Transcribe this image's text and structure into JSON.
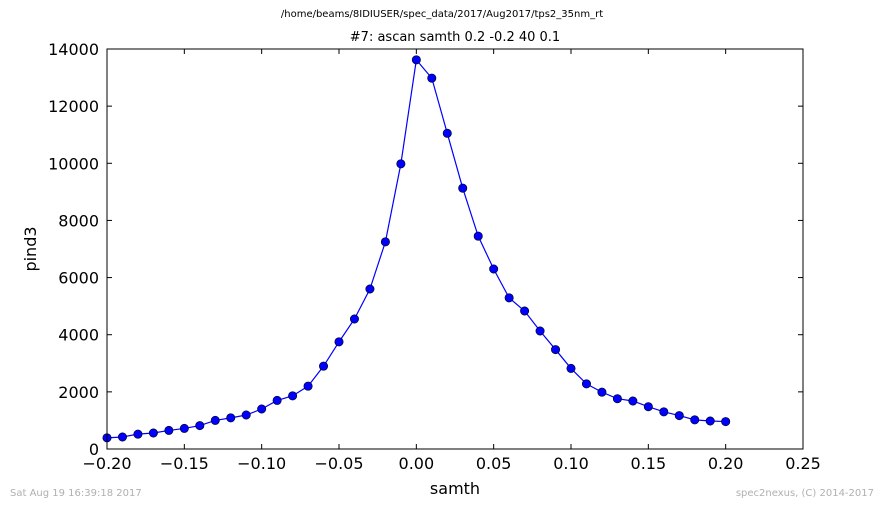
{
  "suptitle": "/home/beams/8IDIUSER/spec_data/2017/Aug2017/tps2_35nm_rt",
  "footer": {
    "timestamp": "Sat Aug 19 16:39:18 2017",
    "credit": "spec2nexus, (C) 2014-2017"
  },
  "chart_data": {
    "type": "line",
    "title": "#7: ascan  samth 0.2 -0.2  40 0.1",
    "xlabel": "samth",
    "ylabel": "pind3",
    "xlim": [
      -0.2,
      0.25
    ],
    "ylim": [
      0,
      14000
    ],
    "xticks": [
      -0.2,
      -0.15,
      -0.1,
      -0.05,
      0.0,
      0.05,
      0.1,
      0.15,
      0.2,
      0.25
    ],
    "xtick_labels": [
      "−0.20",
      "−0.15",
      "−0.10",
      "−0.05",
      "0.00",
      "0.05",
      "0.10",
      "0.15",
      "0.20",
      "0.25"
    ],
    "yticks": [
      0,
      2000,
      4000,
      6000,
      8000,
      10000,
      12000,
      14000
    ],
    "ytick_labels": [
      "0",
      "2000",
      "4000",
      "6000",
      "8000",
      "10000",
      "12000",
      "14000"
    ],
    "grid": false,
    "color": "#0000ff",
    "x": [
      -0.2,
      -0.19,
      -0.18,
      -0.17,
      -0.16,
      -0.15,
      -0.14,
      -0.13,
      -0.12,
      -0.11,
      -0.1,
      -0.09,
      -0.08,
      -0.07,
      -0.06,
      -0.05,
      -0.04,
      -0.03,
      -0.02,
      -0.01,
      0.0,
      0.01,
      0.02,
      0.03,
      0.04,
      0.05,
      0.06,
      0.07,
      0.08,
      0.09,
      0.1,
      0.11,
      0.12,
      0.13,
      0.14,
      0.15,
      0.16,
      0.17,
      0.18,
      0.19,
      0.2
    ],
    "y": [
      390,
      420,
      520,
      560,
      650,
      720,
      820,
      1000,
      1090,
      1190,
      1400,
      1700,
      1860,
      2200,
      2900,
      3750,
      4550,
      5600,
      7250,
      9980,
      13620,
      12980,
      11050,
      9130,
      7450,
      6300,
      5290,
      4830,
      4130,
      3480,
      2820,
      2280,
      1990,
      1760,
      1680,
      1480,
      1300,
      1170,
      1020,
      980,
      960
    ]
  }
}
